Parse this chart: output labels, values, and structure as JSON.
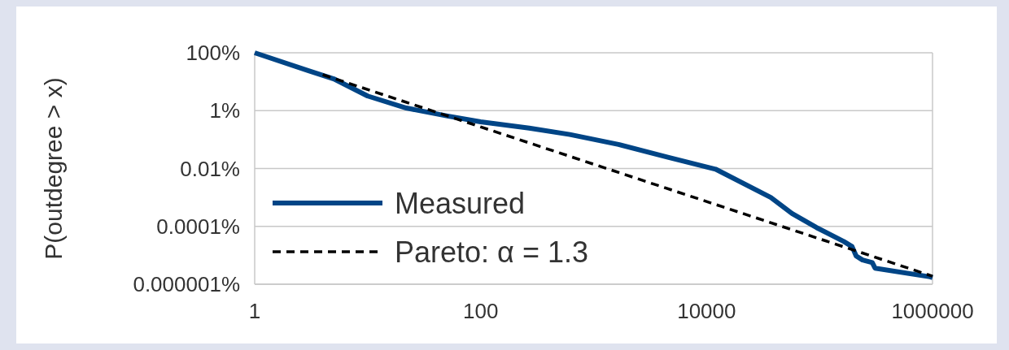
{
  "chart_data": {
    "type": "line",
    "ylabel": "P(outdegree > x)",
    "log": "xy",
    "grid": "y",
    "legend": "bottom left",
    "xlim": [
      1,
      1000000
    ],
    "xticks": [
      1,
      100,
      10000,
      1000000
    ],
    "ylim": [
      1e-06,
      100
    ],
    "yticks": [
      {
        "value": 100,
        "label": "100%"
      },
      {
        "value": 1,
        "label": "1%"
      },
      {
        "value": 0.01,
        "label": "0.01%"
      },
      {
        "value": 0.0001,
        "label": "0.0001%"
      },
      {
        "value": 1e-06,
        "label": "0.000001%"
      }
    ],
    "series": [
      {
        "name": "Measured",
        "color": "#004586",
        "line_style": "solid",
        "x": [
          1,
          3,
          5,
          10,
          22,
          51,
          100,
          269,
          616,
          1660,
          4470,
          12000,
          37000,
          57000,
          94000,
          164000,
          194000,
          211000,
          240000,
          293000,
          310000,
          950000,
          1000000
        ],
        "values": [
          100,
          24,
          12.6,
          3.2,
          1.23,
          0.65,
          0.41,
          0.25,
          0.15,
          0.068,
          0.025,
          0.0095,
          0.001,
          0.00028,
          9.1e-05,
          3e-05,
          2e-05,
          9.5e-06,
          6.9e-06,
          5.6e-06,
          3.6e-06,
          1.8e-06,
          1.7e-06
        ]
      },
      {
        "name": "Pareto: α = 1.3",
        "color": "#000000",
        "line_style": "dashed",
        "x": [
          4,
          1000000
        ],
        "values": [
          17.5,
          1.9e-06
        ]
      }
    ]
  }
}
